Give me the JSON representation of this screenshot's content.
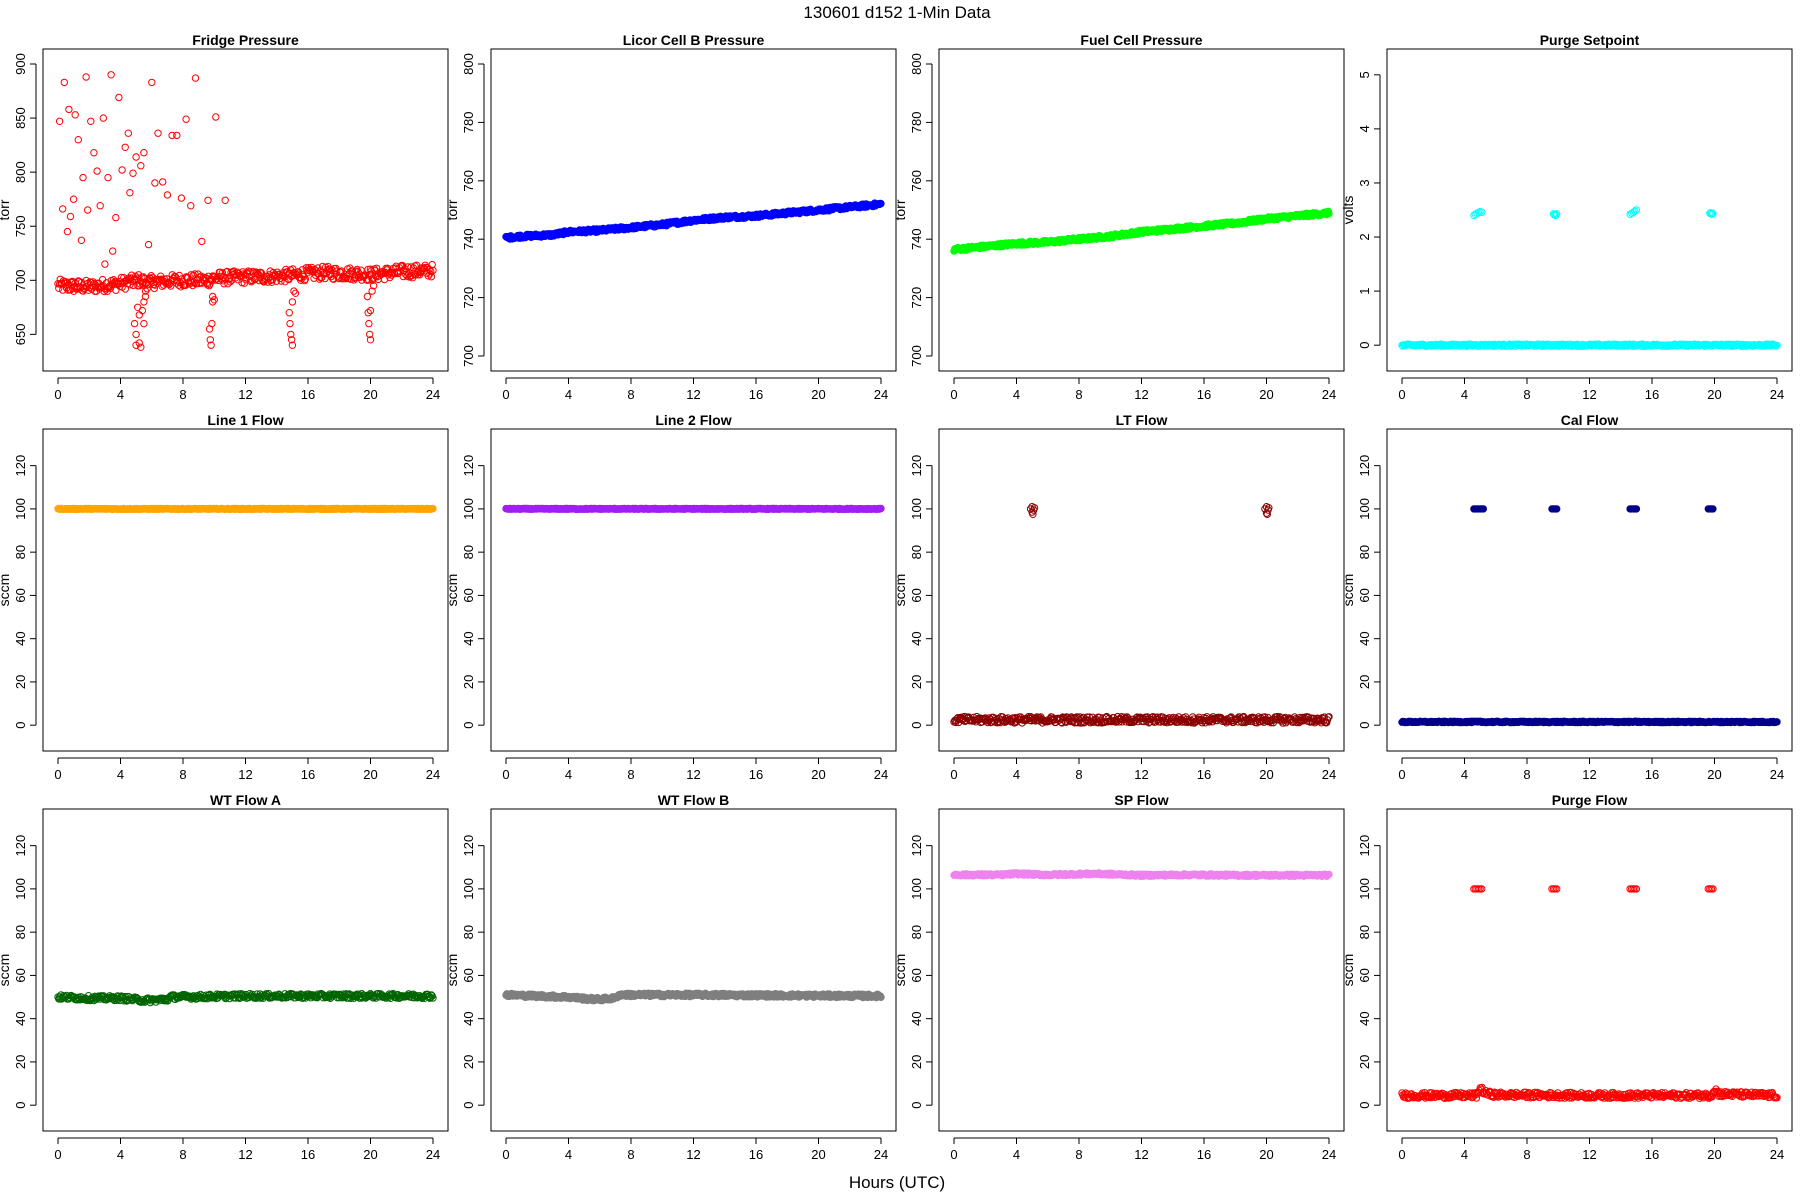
{
  "figure": {
    "title": "130601    d152    1-Min Data",
    "xlabel": "Hours (UTC)"
  },
  "chart_data": [
    {
      "type": "scatter",
      "title": "Fridge Pressure",
      "ylabel": "torr",
      "xlim": [
        0,
        24
      ],
      "ylim": [
        630,
        900
      ],
      "xticks": [
        0,
        4,
        8,
        12,
        16,
        20,
        24
      ],
      "yticks": [
        650,
        700,
        750,
        800,
        850,
        900
      ],
      "color": "#ff0000",
      "filled": false,
      "series": [
        {
          "name": "baseline",
          "kind": "band",
          "x": [
            0,
            2,
            4,
            5.2,
            5.6,
            8,
            9.5,
            10,
            12,
            14.5,
            15.2,
            17,
            19.5,
            20,
            22,
            24
          ],
          "y": [
            695,
            694,
            697,
            700,
            698,
            700,
            700,
            702,
            703,
            704,
            705,
            707,
            706,
            705,
            708,
            709
          ],
          "jitter": 6
        },
        {
          "name": "dips",
          "kind": "points",
          "x": [
            4.9,
            5.0,
            5.0,
            5.1,
            5.2,
            5.2,
            5.3,
            5.4,
            5.5,
            5.5,
            5.6,
            5.6,
            9.7,
            9.75,
            9.8,
            9.85,
            9.9,
            9.9,
            10.0,
            14.8,
            14.85,
            14.9,
            14.95,
            15.0,
            15.0,
            15.1,
            15.2,
            19.8,
            19.85,
            19.9,
            19.95,
            20.0,
            20.0,
            20.1,
            20.2
          ],
          "y": [
            660,
            650,
            640,
            675,
            668,
            642,
            638,
            672,
            680,
            660,
            685,
            690,
            655,
            645,
            640,
            660,
            680,
            685,
            682,
            670,
            660,
            650,
            645,
            640,
            680,
            690,
            688,
            685,
            670,
            660,
            650,
            645,
            672,
            690,
            695
          ]
        },
        {
          "name": "spikes",
          "kind": "points",
          "x": [
            0.1,
            0.3,
            0.4,
            0.6,
            0.7,
            0.8,
            1.0,
            1.1,
            1.3,
            1.5,
            1.6,
            1.8,
            1.9,
            2.1,
            2.3,
            2.5,
            2.7,
            2.9,
            3.0,
            3.2,
            3.4,
            3.5,
            3.7,
            3.9,
            4.1,
            4.3,
            4.5,
            4.6,
            4.8,
            5.0,
            5.3,
            5.5,
            5.8,
            6.0,
            6.2,
            6.4,
            6.7,
            7.0,
            7.3,
            7.6,
            7.9,
            8.2,
            8.5,
            8.8,
            9.2,
            9.6,
            10.1,
            10.7
          ],
          "y": [
            847,
            766,
            883,
            745,
            858,
            759,
            775,
            853,
            830,
            737,
            795,
            888,
            765,
            847,
            818,
            801,
            769,
            850,
            715,
            795,
            890,
            727,
            758,
            869,
            802,
            823,
            836,
            781,
            799,
            814,
            806,
            818,
            733,
            883,
            790,
            836,
            791,
            779,
            834,
            834,
            776,
            849,
            769,
            887,
            736,
            774,
            851,
            774
          ]
        }
      ]
    },
    {
      "type": "scatter",
      "title": "Licor Cell B Pressure",
      "ylabel": "torr",
      "xlim": [
        0,
        24
      ],
      "ylim": [
        700,
        800
      ],
      "xticks": [
        0,
        4,
        8,
        12,
        16,
        20,
        24
      ],
      "yticks": [
        700,
        720,
        740,
        760,
        780,
        800
      ],
      "color": "#0000ff",
      "filled": true,
      "series": [
        {
          "name": "pressure",
          "kind": "band",
          "x": [
            0,
            1,
            3,
            4,
            6,
            8,
            10,
            12,
            14,
            16,
            18,
            20,
            22,
            24
          ],
          "y": [
            740.5,
            741,
            741.5,
            742.5,
            743,
            744,
            745,
            746.5,
            747.5,
            748,
            749,
            750,
            751,
            752
          ],
          "jitter": 0.6
        }
      ]
    },
    {
      "type": "scatter",
      "title": "Fuel Cell Pressure",
      "ylabel": "torr",
      "xlim": [
        0,
        24
      ],
      "ylim": [
        700,
        800
      ],
      "xticks": [
        0,
        4,
        8,
        12,
        16,
        20,
        24
      ],
      "yticks": [
        700,
        720,
        740,
        760,
        780,
        800
      ],
      "color": "#00ff00",
      "filled": true,
      "series": [
        {
          "name": "pressure",
          "kind": "band",
          "x": [
            0,
            2,
            4,
            6,
            8,
            10,
            12,
            14,
            16,
            18,
            20,
            22,
            24
          ],
          "y": [
            736.5,
            737.5,
            738.5,
            739,
            740,
            741,
            742.5,
            743.5,
            744.5,
            745.5,
            747,
            748,
            749
          ],
          "jitter": 0.6
        }
      ]
    },
    {
      "type": "scatter",
      "title": "Purge Setpoint",
      "ylabel": "volts",
      "xlim": [
        0,
        24
      ],
      "ylim": [
        -0.2,
        5.2
      ],
      "xticks": [
        0,
        4,
        8,
        12,
        16,
        20,
        24
      ],
      "yticks": [
        0,
        1,
        2,
        3,
        4,
        5
      ],
      "color": "#00ffff",
      "filled": false,
      "series": [
        {
          "name": "off",
          "kind": "band",
          "x": [
            0,
            24
          ],
          "y": [
            0,
            0
          ],
          "jitter": 0.02
        },
        {
          "name": "on",
          "kind": "points",
          "x": [
            4.6,
            4.7,
            4.8,
            4.9,
            5.0,
            5.1,
            9.7,
            9.75,
            9.8,
            9.85,
            9.9,
            14.6,
            14.7,
            14.8,
            14.9,
            15.0,
            19.7,
            19.75,
            19.8,
            19.85,
            19.9
          ],
          "y": [
            2.4,
            2.42,
            2.44,
            2.45,
            2.47,
            2.46,
            2.43,
            2.41,
            2.42,
            2.4,
            2.43,
            2.42,
            2.44,
            2.46,
            2.48,
            2.5,
            2.44,
            2.45,
            2.43,
            2.42,
            2.44
          ]
        }
      ]
    },
    {
      "type": "scatter",
      "title": "Line 1 Flow",
      "ylabel": "sccm",
      "xlim": [
        0,
        24
      ],
      "ylim": [
        -5,
        130
      ],
      "xticks": [
        0,
        4,
        8,
        12,
        16,
        20,
        24
      ],
      "yticks": [
        0,
        20,
        40,
        60,
        80,
        100,
        120
      ],
      "color": "#ffa500",
      "filled": true,
      "series": [
        {
          "name": "flow",
          "kind": "band",
          "x": [
            0,
            24
          ],
          "y": [
            100,
            100
          ],
          "jitter": 0.2
        }
      ]
    },
    {
      "type": "scatter",
      "title": "Line 2 Flow",
      "ylabel": "sccm",
      "xlim": [
        0,
        24
      ],
      "ylim": [
        -5,
        130
      ],
      "xticks": [
        0,
        4,
        8,
        12,
        16,
        20,
        24
      ],
      "yticks": [
        0,
        20,
        40,
        60,
        80,
        100,
        120
      ],
      "color": "#a020f0",
      "filled": true,
      "series": [
        {
          "name": "flow",
          "kind": "band",
          "x": [
            0,
            24
          ],
          "y": [
            100,
            100
          ],
          "jitter": 0.2
        }
      ]
    },
    {
      "type": "scatter",
      "title": "LT Flow",
      "ylabel": "sccm",
      "xlim": [
        0,
        24
      ],
      "ylim": [
        -5,
        130
      ],
      "xticks": [
        0,
        4,
        8,
        12,
        16,
        20,
        24
      ],
      "yticks": [
        0,
        20,
        40,
        60,
        80,
        100,
        120
      ],
      "color": "#8b0000",
      "filled": false,
      "series": [
        {
          "name": "base",
          "kind": "band",
          "x": [
            0,
            24
          ],
          "y": [
            2.5,
            2.5
          ],
          "jitter": 1.5
        },
        {
          "name": "high",
          "kind": "points",
          "x": [
            4.9,
            5.0,
            5.0,
            5.1,
            5.15,
            5.05,
            19.9,
            20.0,
            20.0,
            20.1,
            20.15,
            20.05
          ],
          "y": [
            100,
            101,
            98.5,
            99.5,
            100.5,
            97.5,
            100,
            101,
            98,
            99.5,
            100.5,
            97.5
          ]
        }
      ]
    },
    {
      "type": "scatter",
      "title": "Cal Flow",
      "ylabel": "sccm",
      "xlim": [
        0,
        24
      ],
      "ylim": [
        -5,
        130
      ],
      "xticks": [
        0,
        4,
        8,
        12,
        16,
        20,
        24
      ],
      "yticks": [
        0,
        20,
        40,
        60,
        80,
        100,
        120
      ],
      "color": "#00008b",
      "filled": true,
      "series": [
        {
          "name": "base",
          "kind": "band",
          "x": [
            0,
            24
          ],
          "y": [
            1.5,
            1.5
          ],
          "jitter": 0.3
        },
        {
          "name": "high",
          "kind": "points",
          "x": [
            4.6,
            4.7,
            4.8,
            4.9,
            5.0,
            5.1,
            5.2,
            9.6,
            9.7,
            9.8,
            9.9,
            14.6,
            14.7,
            14.8,
            14.9,
            15.0,
            19.6,
            19.7,
            19.8,
            19.9
          ],
          "y": [
            100,
            100,
            100,
            100,
            100,
            100,
            100,
            100,
            100,
            100,
            100,
            100,
            100,
            100,
            100,
            100,
            100,
            100,
            100,
            100
          ]
        }
      ]
    },
    {
      "type": "scatter",
      "title": "WT Flow A",
      "ylabel": "sccm",
      "xlim": [
        0,
        24
      ],
      "ylim": [
        -5,
        130
      ],
      "xticks": [
        0,
        4,
        8,
        12,
        16,
        20,
        24
      ],
      "yticks": [
        0,
        20,
        40,
        60,
        80,
        100,
        120
      ],
      "color": "#006400",
      "filled": false,
      "series": [
        {
          "name": "flow",
          "kind": "band",
          "x": [
            0,
            2,
            4,
            5.5,
            6,
            7,
            7.2,
            12,
            24
          ],
          "y": [
            50,
            49.5,
            49.5,
            48.5,
            48.5,
            49,
            50,
            50.5,
            50.5
          ],
          "jitter": 1.1
        }
      ]
    },
    {
      "type": "scatter",
      "title": "WT Flow B",
      "ylabel": "sccm",
      "xlim": [
        0,
        24
      ],
      "ylim": [
        -5,
        130
      ],
      "xticks": [
        0,
        4,
        8,
        12,
        16,
        20,
        24
      ],
      "yticks": [
        0,
        20,
        40,
        60,
        80,
        100,
        120
      ],
      "color": "#7f7f7f",
      "filled": true,
      "series": [
        {
          "name": "flow",
          "kind": "band",
          "x": [
            0,
            2,
            4,
            5.5,
            6,
            7,
            7.2,
            12,
            24
          ],
          "y": [
            51,
            50.5,
            50,
            49,
            49,
            49.5,
            51,
            51,
            50.5
          ],
          "jitter": 0.8
        }
      ]
    },
    {
      "type": "scatter",
      "title": "SP Flow",
      "ylabel": "sccm",
      "xlim": [
        0,
        24
      ],
      "ylim": [
        -5,
        130
      ],
      "xticks": [
        0,
        4,
        8,
        12,
        16,
        20,
        24
      ],
      "yticks": [
        0,
        20,
        40,
        60,
        80,
        100,
        120
      ],
      "color": "#ee82ee",
      "filled": true,
      "series": [
        {
          "name": "flow",
          "kind": "band",
          "x": [
            0,
            3,
            4,
            6,
            9,
            10,
            12,
            15,
            18,
            24
          ],
          "y": [
            106.5,
            106.5,
            107,
            106.5,
            107,
            106.8,
            106.3,
            106.5,
            106.3,
            106.3
          ],
          "jitter": 0.5
        }
      ]
    },
    {
      "type": "scatter",
      "title": "Purge Flow",
      "ylabel": "sccm",
      "xlim": [
        0,
        24
      ],
      "ylim": [
        -5,
        130
      ],
      "xticks": [
        0,
        4,
        8,
        12,
        16,
        20,
        24
      ],
      "yticks": [
        0,
        20,
        40,
        60,
        80,
        100,
        120
      ],
      "color": "#ff0000",
      "filled": false,
      "series": [
        {
          "name": "base",
          "kind": "band",
          "x": [
            0,
            4.8,
            5.0,
            5.3,
            6,
            12,
            19.8,
            20.0,
            20.3,
            24
          ],
          "y": [
            4.5,
            4.5,
            8,
            5.5,
            4.8,
            4.5,
            4.5,
            7.5,
            5.2,
            4.5
          ],
          "jitter": 1.3
        },
        {
          "name": "high",
          "kind": "points",
          "x": [
            4.6,
            4.7,
            4.8,
            4.9,
            5.0,
            5.1,
            9.6,
            9.7,
            9.8,
            9.9,
            14.6,
            14.7,
            14.8,
            14.9,
            15.0,
            19.6,
            19.7,
            19.8,
            19.9
          ],
          "y": [
            100,
            100,
            100,
            100,
            100,
            100,
            100,
            100,
            100,
            100,
            100,
            100,
            100,
            100,
            100,
            100,
            100,
            100,
            100
          ]
        }
      ]
    }
  ]
}
